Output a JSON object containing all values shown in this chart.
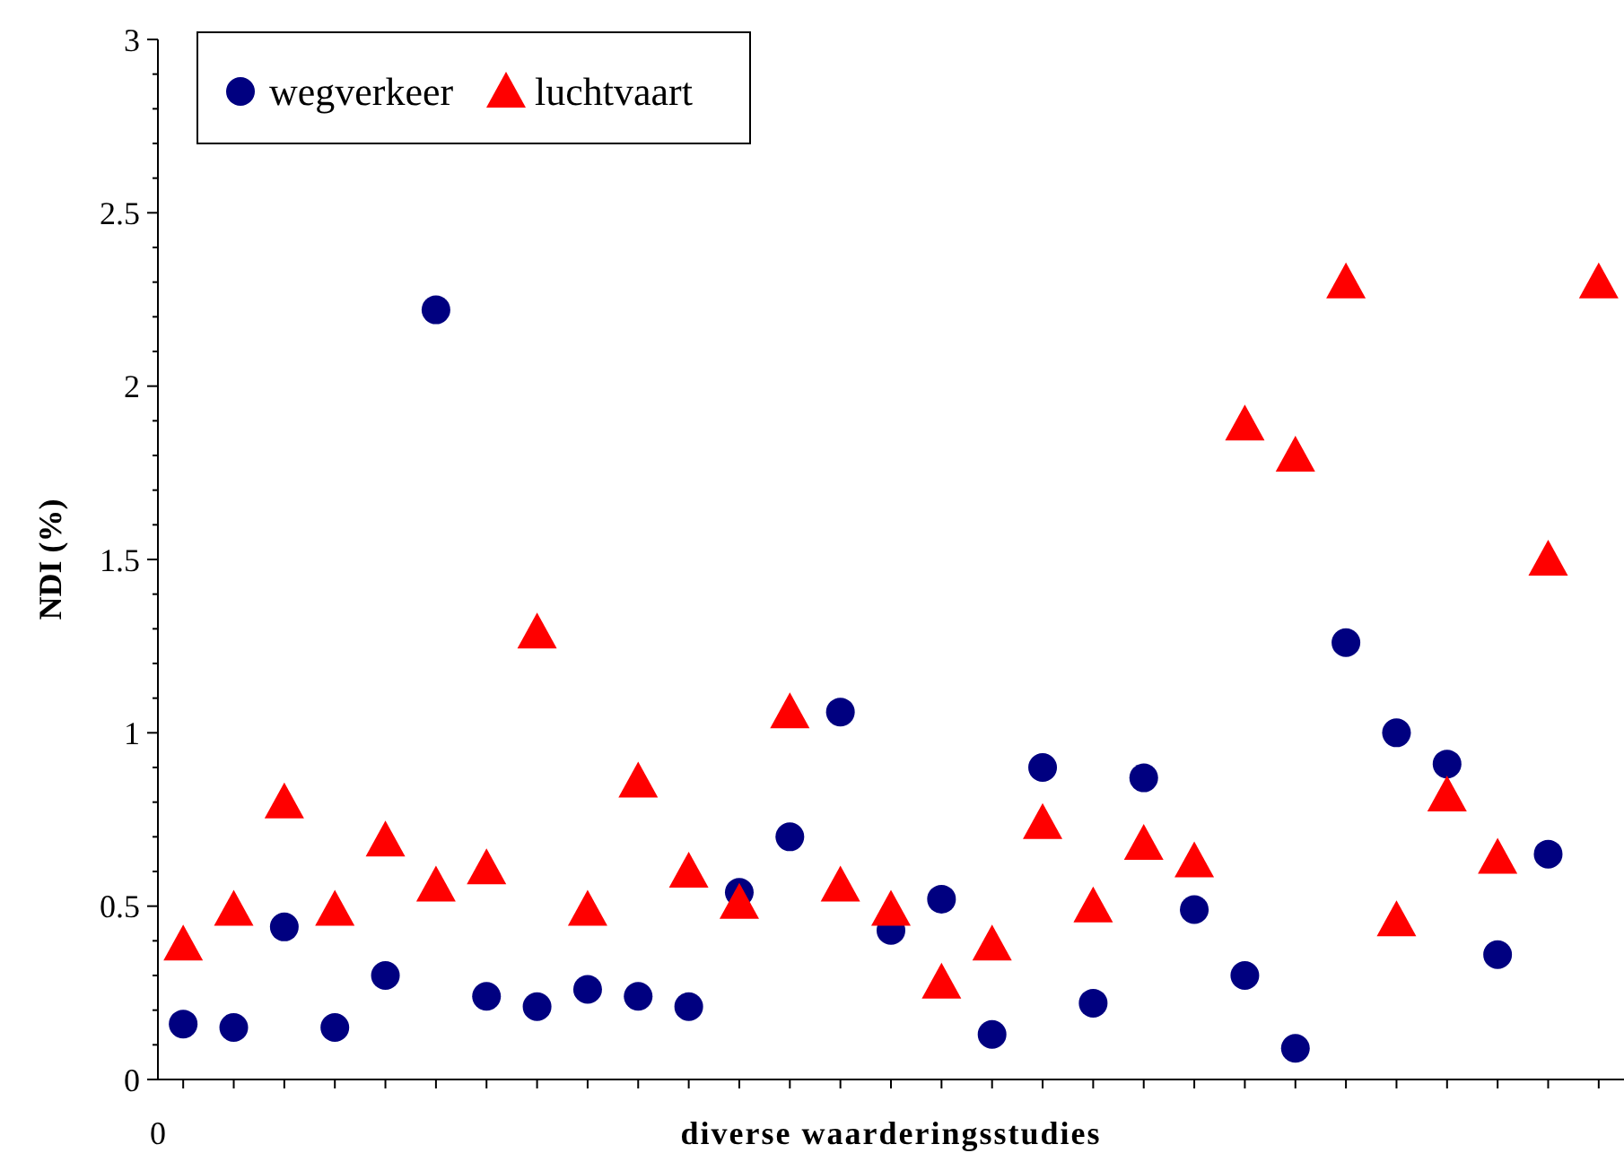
{
  "chart_data": {
    "type": "scatter",
    "xlabel": "diverse waarderingsstudies",
    "ylabel": "NDI (%)",
    "categories": [
      null,
      null,
      null,
      null,
      null,
      null,
      null,
      null,
      null,
      null,
      null,
      null,
      null,
      null,
      null,
      null,
      null,
      null,
      null,
      null,
      null,
      null,
      null,
      null,
      null,
      null,
      null,
      null,
      null
    ],
    "ylim": [
      0,
      3
    ],
    "yticks": [
      0,
      {
        "value": 0.1,
        "label": null
      },
      {
        "value": 0.2,
        "label": null
      },
      {
        "value": 0.3,
        "label": null
      },
      {
        "value": 0.4,
        "label": null
      },
      0.5,
      {
        "value": 0.6,
        "label": null
      },
      {
        "value": 0.7,
        "label": null
      },
      {
        "value": 0.8,
        "label": null
      },
      {
        "value": 0.9,
        "label": null
      },
      1,
      {
        "value": 1.1,
        "label": null
      },
      {
        "value": 1.2,
        "label": null
      },
      {
        "value": 1.3,
        "label": null
      },
      {
        "value": 1.4,
        "label": null
      },
      1.5,
      {
        "value": 1.6,
        "label": null
      },
      {
        "value": 1.7,
        "label": null
      },
      {
        "value": 1.8,
        "label": null
      },
      {
        "value": 1.9,
        "label": null
      },
      2,
      {
        "value": 2.1,
        "label": null
      },
      {
        "value": 2.2,
        "label": null
      },
      {
        "value": 2.3,
        "label": null
      },
      {
        "value": 2.4,
        "label": null
      },
      2.5,
      {
        "value": 2.6,
        "label": null
      },
      {
        "value": 2.7,
        "label": null
      },
      {
        "value": 2.8,
        "label": null
      },
      {
        "value": 2.9,
        "label": null
      },
      3
    ],
    "series": [
      {
        "name": "wegverkeer",
        "color": "#000080",
        "marker": "circle",
        "values": [
          0.16,
          0.15,
          0.44,
          0.15,
          0.3,
          2.22,
          0.24,
          0.21,
          0.26,
          0.24,
          0.21,
          0.54,
          0.7,
          1.06,
          0.43,
          0.52,
          0.13,
          0.9,
          0.22,
          0.87,
          0.49,
          0.3,
          0.09,
          1.26,
          1.0,
          0.91,
          0.36,
          0.65,
          null
        ]
      },
      {
        "name": "luchtvaart",
        "color": "#ff0000",
        "marker": "triangle",
        "values": [
          0.39,
          0.49,
          0.8,
          0.49,
          0.69,
          0.56,
          0.61,
          1.29,
          0.49,
          0.86,
          0.6,
          0.51,
          1.06,
          0.56,
          0.49,
          0.28,
          0.39,
          0.74,
          0.5,
          0.68,
          0.63,
          1.89,
          1.8,
          2.3,
          0.46,
          0.82,
          0.64,
          1.5,
          2.3
        ]
      }
    ],
    "annotations": [
      "0"
    ],
    "legend": "top left",
    "grid": false
  }
}
